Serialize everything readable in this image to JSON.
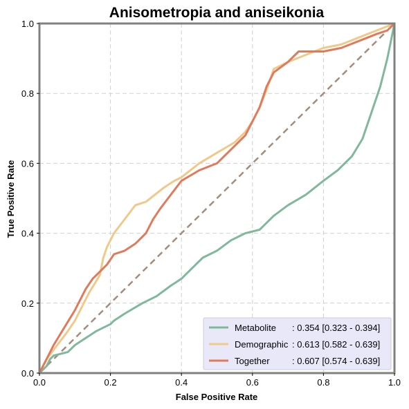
{
  "chart_data": {
    "type": "line",
    "title": "Anisometropia and aniseikonia",
    "xlabel": "False Positive Rate",
    "ylabel": "True Positive Rate",
    "xlim": [
      0,
      1
    ],
    "ylim": [
      0,
      1
    ],
    "x_ticks": [
      "0.0",
      "0.2",
      "0.4",
      "0.6",
      "0.8",
      "1.0"
    ],
    "y_ticks": [
      "0.0",
      "0.2",
      "0.4",
      "0.6",
      "0.8",
      "1.0"
    ],
    "grid": true,
    "legend_position": "lower-right",
    "diagonal_color": "#a58b7c",
    "series": [
      {
        "name": "Metabolite",
        "legend_suffix": ": 0.354 [0.323 - 0.394]",
        "color": "#7fb89a",
        "x": [
          0.0,
          0.01,
          0.02,
          0.03,
          0.04,
          0.08,
          0.1,
          0.13,
          0.16,
          0.2,
          0.21,
          0.24,
          0.29,
          0.33,
          0.37,
          0.4,
          0.43,
          0.46,
          0.5,
          0.54,
          0.58,
          0.62,
          0.66,
          0.7,
          0.75,
          0.8,
          0.84,
          0.88,
          0.91,
          0.93,
          0.96,
          0.98,
          0.99,
          1.0
        ],
        "y": [
          0.0,
          0.01,
          0.02,
          0.04,
          0.05,
          0.06,
          0.08,
          0.1,
          0.12,
          0.14,
          0.15,
          0.17,
          0.2,
          0.22,
          0.25,
          0.27,
          0.3,
          0.33,
          0.35,
          0.38,
          0.4,
          0.41,
          0.45,
          0.48,
          0.51,
          0.55,
          0.58,
          0.62,
          0.67,
          0.73,
          0.82,
          0.9,
          0.95,
          1.0
        ]
      },
      {
        "name": "Demographic",
        "legend_suffix": ": 0.613 [0.582 - 0.639]",
        "color": "#f0c98a",
        "x": [
          0.0,
          0.02,
          0.05,
          0.08,
          0.1,
          0.14,
          0.17,
          0.18,
          0.19,
          0.21,
          0.24,
          0.27,
          0.3,
          0.35,
          0.38,
          0.4,
          0.45,
          0.5,
          0.55,
          0.58,
          0.6,
          0.62,
          0.64,
          0.66,
          0.7,
          0.75,
          0.8,
          0.85,
          0.9,
          0.95,
          1.0
        ],
        "y": [
          0.0,
          0.04,
          0.08,
          0.12,
          0.15,
          0.23,
          0.28,
          0.33,
          0.36,
          0.4,
          0.44,
          0.48,
          0.49,
          0.53,
          0.55,
          0.56,
          0.6,
          0.63,
          0.66,
          0.69,
          0.72,
          0.76,
          0.81,
          0.87,
          0.89,
          0.91,
          0.93,
          0.94,
          0.96,
          0.98,
          1.0
        ]
      },
      {
        "name": "Together",
        "legend_suffix": ": 0.607 [0.574 - 0.639]",
        "color": "#e07a5a",
        "x": [
          0.0,
          0.02,
          0.04,
          0.07,
          0.1,
          0.13,
          0.15,
          0.17,
          0.19,
          0.21,
          0.24,
          0.27,
          0.3,
          0.32,
          0.34,
          0.37,
          0.4,
          0.45,
          0.5,
          0.55,
          0.58,
          0.6,
          0.62,
          0.64,
          0.66,
          0.7,
          0.73,
          0.8,
          0.85,
          0.9,
          0.95,
          0.98,
          1.0
        ],
        "y": [
          0.0,
          0.04,
          0.08,
          0.13,
          0.18,
          0.24,
          0.27,
          0.29,
          0.31,
          0.34,
          0.35,
          0.37,
          0.4,
          0.44,
          0.47,
          0.51,
          0.55,
          0.58,
          0.6,
          0.65,
          0.68,
          0.72,
          0.76,
          0.82,
          0.86,
          0.89,
          0.92,
          0.92,
          0.93,
          0.95,
          0.97,
          0.98,
          1.0
        ]
      }
    ]
  }
}
